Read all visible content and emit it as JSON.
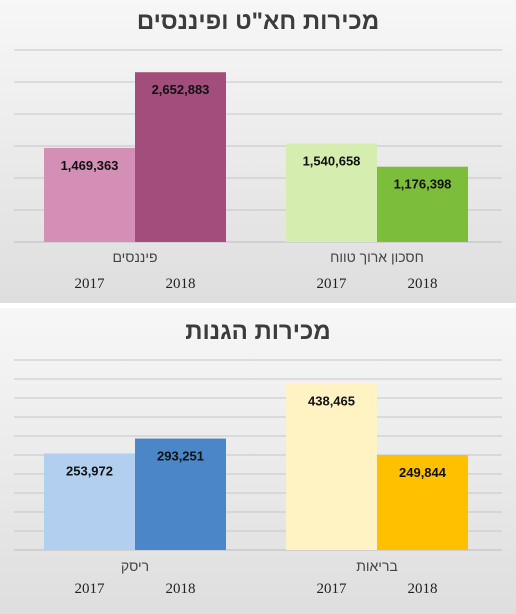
{
  "chart_data": [
    {
      "type": "bar",
      "title": "מכירות חא\"ט ופיננסים",
      "groups": [
        {
          "category": "פיננסים",
          "bars": [
            {
              "year": "2017",
              "value": 1469363,
              "label": "1,469,363",
              "color": "#d48fb7"
            },
            {
              "year": "2018",
              "value": 2652883,
              "label": "2,652,883",
              "color": "#a34d7c"
            }
          ]
        },
        {
          "category": "חסכון ארוך טווח",
          "bars": [
            {
              "year": "2017",
              "value": 1540658,
              "label": "1,540,658",
              "color": "#d6edb0"
            },
            {
              "year": "2018",
              "value": 1176398,
              "label": "1,176,398",
              "color": "#7dbd3c"
            }
          ]
        }
      ],
      "ylim": [
        0,
        3000000
      ],
      "gridlines": true
    },
    {
      "type": "bar",
      "title": "מכירות הגנות",
      "groups": [
        {
          "category": "ריסק",
          "bars": [
            {
              "year": "2017",
              "value": 253972,
              "label": "253,972",
              "color": "#b3cfef"
            },
            {
              "year": "2018",
              "value": 293251,
              "label": "293,251",
              "color": "#4a86c8"
            }
          ]
        },
        {
          "category": "בריאות",
          "bars": [
            {
              "year": "2017",
              "value": 438465,
              "label": "438,465",
              "color": "#fff3c4"
            },
            {
              "year": "2018",
              "value": 249844,
              "label": "249,844",
              "color": "#ffc000"
            }
          ]
        }
      ],
      "ylim": [
        0,
        500000
      ],
      "gridlines": true
    }
  ]
}
